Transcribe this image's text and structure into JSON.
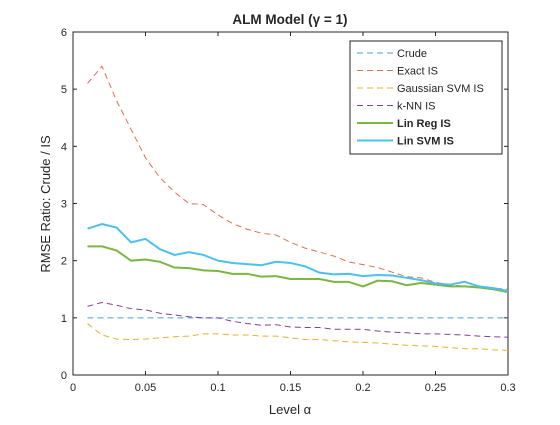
{
  "chart_data": {
    "type": "line",
    "title": "ALM Model (γ = 1)",
    "xlabel": "Level α",
    "ylabel": "RMSE Ratio: Crude / IS",
    "xlim": [
      0,
      0.3
    ],
    "ylim": [
      0,
      6
    ],
    "x_ticks": [
      0,
      0.05,
      0.1,
      0.15,
      0.2,
      0.25,
      0.3
    ],
    "x_tick_labels": [
      "0",
      "0.05",
      "0.1",
      "0.15",
      "0.2",
      "0.25",
      "0.3"
    ],
    "y_ticks": [
      0,
      1,
      2,
      3,
      4,
      5,
      6
    ],
    "y_tick_labels": [
      "0",
      "1",
      "2",
      "3",
      "4",
      "5",
      "6"
    ],
    "grid": false,
    "legend_position": "top-right",
    "x": [
      0.01,
      0.02,
      0.03,
      0.04,
      0.05,
      0.06,
      0.07,
      0.08,
      0.09,
      0.1,
      0.11,
      0.12,
      0.13,
      0.14,
      0.15,
      0.16,
      0.17,
      0.18,
      0.19,
      0.2,
      0.21,
      0.22,
      0.23,
      0.24,
      0.25,
      0.26,
      0.27,
      0.28,
      0.29,
      0.3
    ],
    "series": [
      {
        "name": "Crude",
        "color": "#4aa0c8",
        "style": "dashed",
        "bold": false,
        "values": [
          1,
          1,
          1,
          1,
          1,
          1,
          1,
          1,
          1,
          1,
          1,
          1,
          1,
          1,
          1,
          1,
          1,
          1,
          1,
          1,
          1,
          1,
          1,
          1,
          1,
          1,
          1,
          1,
          1,
          1
        ]
      },
      {
        "name": "Exact IS",
        "color": "#e0704a",
        "style": "dashed",
        "bold": false,
        "values": [
          5.1,
          5.4,
          4.8,
          4.3,
          3.8,
          3.45,
          3.2,
          3.0,
          2.98,
          2.8,
          2.65,
          2.55,
          2.48,
          2.45,
          2.32,
          2.22,
          2.15,
          2.08,
          1.98,
          1.93,
          1.88,
          1.8,
          1.72,
          1.7,
          1.62,
          1.58,
          1.55,
          1.55,
          1.52,
          1.5
        ]
      },
      {
        "name": "Gaussian SVM IS",
        "color": "#e8b030",
        "style": "dashed",
        "bold": false,
        "values": [
          0.9,
          0.7,
          0.63,
          0.62,
          0.63,
          0.65,
          0.67,
          0.68,
          0.72,
          0.72,
          0.7,
          0.7,
          0.68,
          0.68,
          0.65,
          0.62,
          0.62,
          0.6,
          0.58,
          0.57,
          0.56,
          0.54,
          0.52,
          0.51,
          0.5,
          0.48,
          0.46,
          0.46,
          0.44,
          0.43
        ]
      },
      {
        "name": "k-NN IS",
        "color": "#8a3c9a",
        "style": "dashed",
        "bold": false,
        "values": [
          1.2,
          1.27,
          1.22,
          1.16,
          1.14,
          1.08,
          1.05,
          1.02,
          1.0,
          1.0,
          0.94,
          0.9,
          0.87,
          0.88,
          0.84,
          0.83,
          0.83,
          0.8,
          0.8,
          0.8,
          0.77,
          0.75,
          0.74,
          0.72,
          0.72,
          0.71,
          0.7,
          0.68,
          0.67,
          0.66
        ]
      },
      {
        "name": "Lin Reg IS",
        "color": "#7ab640",
        "style": "solid",
        "bold": true,
        "values": [
          2.25,
          2.25,
          2.18,
          2.0,
          2.02,
          1.98,
          1.88,
          1.87,
          1.83,
          1.82,
          1.77,
          1.77,
          1.72,
          1.73,
          1.68,
          1.68,
          1.68,
          1.63,
          1.63,
          1.55,
          1.65,
          1.64,
          1.57,
          1.61,
          1.58,
          1.55,
          1.55,
          1.53,
          1.5,
          1.45
        ]
      },
      {
        "name": "Lin SVM IS",
        "color": "#4cc0ee",
        "style": "solid",
        "bold": true,
        "values": [
          2.56,
          2.64,
          2.58,
          2.32,
          2.38,
          2.2,
          2.1,
          2.15,
          2.1,
          2.0,
          1.96,
          1.94,
          1.92,
          1.98,
          1.96,
          1.9,
          1.79,
          1.76,
          1.77,
          1.73,
          1.75,
          1.74,
          1.7,
          1.66,
          1.6,
          1.58,
          1.63,
          1.55,
          1.52,
          1.47
        ]
      }
    ]
  }
}
